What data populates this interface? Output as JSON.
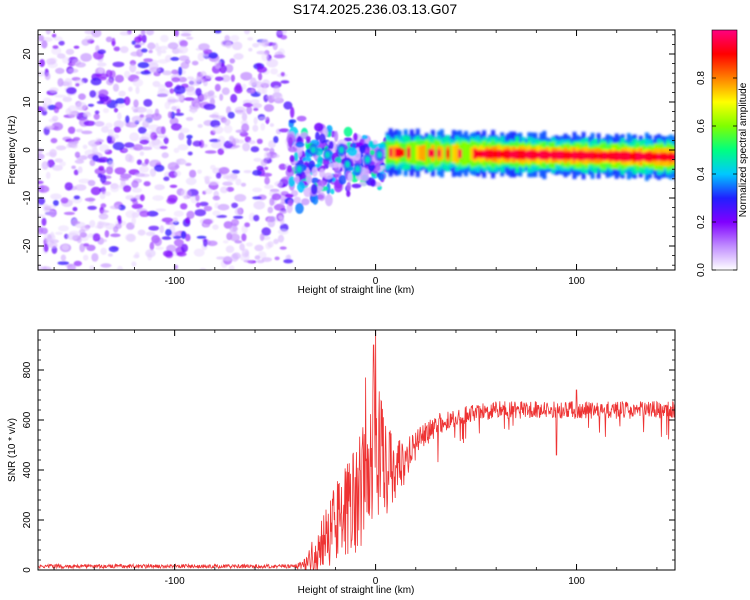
{
  "figure": {
    "title": "S174.2025.236.03.13.G07"
  },
  "chart_data": [
    {
      "type": "heatmap",
      "name": "spectrogram",
      "xlabel": "Height of straight line (km)",
      "ylabel": "Frequency (Hz)",
      "xlim": [
        -168,
        149
      ],
      "ylim": [
        -25,
        25
      ],
      "xticks": [
        -100,
        0,
        100
      ],
      "xtick_labels": [
        "-100",
        "0",
        "100"
      ],
      "yticks": [
        -20,
        -10,
        0,
        10,
        20
      ],
      "ytick_labels": [
        "-20",
        "-10",
        "0",
        "10",
        "20"
      ],
      "colorbar": {
        "label": "Normalized spectral amplitude",
        "range": [
          0,
          1
        ],
        "ticks": [
          0.0,
          0.2,
          0.4,
          0.6,
          0.8
        ],
        "tick_labels": [
          "0.0",
          "0.2",
          "0.4",
          "0.6",
          "0.8"
        ],
        "colormap": [
          "#ffffff",
          "#c08cff",
          "#8000ff",
          "#2020ff",
          "#00c8ff",
          "#00ff80",
          "#80ff00",
          "#ffff00",
          "#ff8000",
          "#ff0000",
          "#ff0080"
        ]
      },
      "regions": [
        {
          "description": "noise",
          "x_range": [
            -168,
            -43
          ],
          "freq_range": [
            -25,
            25
          ],
          "amplitude": [
            0.0,
            0.25
          ]
        },
        {
          "description": "onset",
          "x_range": [
            -43,
            5
          ],
          "freq_range": [
            -12,
            10
          ],
          "amplitude": [
            0.1,
            0.5
          ]
        },
        {
          "description": "signal",
          "x_range": [
            5,
            149
          ],
          "freq_center": [
            -0.5,
            -1.5
          ],
          "amplitude": [
            0.4,
            0.95
          ]
        }
      ]
    },
    {
      "type": "line",
      "name": "snr",
      "xlabel": "Height of straight line (km)",
      "ylabel": "SNR (10 * v/v)",
      "xlim": [
        -168,
        149
      ],
      "ylim": [
        0,
        960
      ],
      "xticks": [
        -100,
        0,
        100
      ],
      "xtick_labels": [
        "-100",
        "0",
        "100"
      ],
      "yticks": [
        0,
        200,
        400,
        600,
        800
      ],
      "ytick_labels": [
        "0",
        "200",
        "400",
        "600",
        "800"
      ],
      "series": [
        {
          "name": "SNR",
          "color": "#ee3333",
          "anchors_x": [
            -168,
            -40,
            -35,
            -30,
            -20,
            -10,
            -5,
            0,
            5,
            10,
            15,
            20,
            25,
            30,
            40,
            50,
            60,
            80,
            100,
            120,
            149
          ],
          "anchors_y": [
            15,
            15,
            20,
            60,
            180,
            280,
            360,
            500,
            420,
            380,
            440,
            500,
            540,
            580,
            610,
            630,
            640,
            640,
            640,
            640,
            640
          ],
          "noise_amplitude": [
            8,
            8,
            30,
            90,
            160,
            220,
            260,
            300,
            200,
            150,
            80,
            60,
            50,
            45,
            40,
            35,
            35,
            35,
            35,
            35,
            35
          ],
          "spikes": [
            [
              0,
              960
            ],
            [
              -1,
              900
            ],
            [
              -5,
              770
            ],
            [
              100,
              720
            ],
            [
              90,
              460
            ],
            [
              145,
              540
            ]
          ]
        }
      ]
    }
  ]
}
